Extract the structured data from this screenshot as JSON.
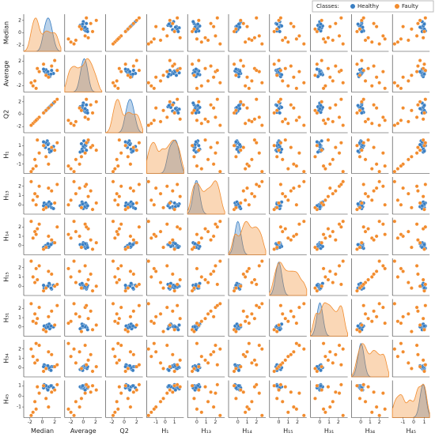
{
  "chart_data": {
    "type": "pairplot",
    "legend_title": "Classes:",
    "legend_position": "upper right",
    "series": [
      {
        "name": "Healthy",
        "color": "#3a7fc3"
      },
      {
        "name": "Faulty",
        "color": "#f28c2e"
      }
    ],
    "variables": [
      {
        "name": "Median",
        "lim": [
          -3,
          3
        ],
        "ticks": [
          -2,
          0,
          2
        ],
        "healthy": [
          0.5,
          1.0,
          1.5,
          0.8,
          1.2,
          0.3,
          1.8,
          0.6,
          1.1,
          0.9,
          1.4,
          0.2
        ],
        "faulty": [
          -1.5,
          -1.2,
          -0.5,
          0.2,
          1.0,
          2.0,
          -1.8,
          -0.8,
          0.6,
          1.5,
          -1.0,
          2.4
        ]
      },
      {
        "name": "Average",
        "lim": [
          -3,
          3
        ],
        "ticks": [
          -2,
          0,
          2
        ],
        "healthy": [
          0.2,
          -0.3,
          0.5,
          0.1,
          -0.5,
          0.4,
          0.0,
          0.6,
          -0.2,
          0.3,
          -0.1,
          0.7
        ],
        "faulty": [
          -2.0,
          -1.2,
          0.3,
          1.5,
          -0.6,
          2.1,
          -1.5,
          0.8,
          -0.3,
          1.2,
          -2.4,
          0.5
        ]
      },
      {
        "name": "Q2",
        "lim": [
          -3,
          3
        ],
        "ticks": [
          -2,
          0,
          2
        ],
        "healthy": [
          0.5,
          1.0,
          1.5,
          0.8,
          1.2,
          0.3,
          1.8,
          0.6,
          1.1,
          0.9,
          1.4,
          0.2
        ],
        "faulty": [
          -1.5,
          -1.2,
          -0.5,
          0.2,
          1.0,
          2.0,
          -1.8,
          -0.8,
          0.6,
          1.5,
          -1.0,
          2.4
        ]
      },
      {
        "name": "H₁",
        "lim": [
          -2,
          2
        ],
        "ticks": [
          -1,
          0,
          1
        ],
        "healthy": [
          0.8,
          1.2,
          0.5,
          1.5,
          0.3,
          1.0,
          0.9,
          1.3,
          0.6,
          1.1,
          0.4,
          1.4
        ],
        "faulty": [
          -1.5,
          -0.5,
          0.2,
          1.0,
          -1.0,
          0.5,
          -1.8,
          1.6,
          -0.2,
          0.8,
          -1.2,
          1.3
        ]
      },
      {
        "name": "H₁₃",
        "lim": [
          -1,
          3
        ],
        "ticks": [
          0,
          1,
          2
        ],
        "healthy": [
          -0.2,
          0.0,
          -0.3,
          0.1,
          -0.1,
          0.2,
          -0.4,
          0.0,
          0.3,
          -0.2,
          0.1,
          -0.1
        ],
        "faulty": [
          0.5,
          1.2,
          2.0,
          -0.5,
          1.8,
          0.2,
          2.5,
          0.9,
          -0.3,
          1.5,
          0.0,
          2.2
        ]
      },
      {
        "name": "H₁₄",
        "lim": [
          -1,
          3
        ],
        "ticks": [
          0,
          1,
          2
        ],
        "healthy": [
          0.0,
          -0.2,
          0.2,
          -0.1,
          0.1,
          -0.3,
          0.3,
          0.0,
          -0.1,
          0.2,
          0.1,
          -0.2
        ],
        "faulty": [
          0.8,
          1.5,
          2.3,
          -0.4,
          1.0,
          0.3,
          2.6,
          1.8,
          -0.2,
          0.6,
          1.2,
          2.0
        ]
      },
      {
        "name": "H₁₅",
        "lim": [
          -1,
          3
        ],
        "ticks": [
          0,
          1,
          2
        ],
        "healthy": [
          -0.1,
          0.1,
          -0.3,
          0.0,
          0.2,
          -0.2,
          0.1,
          -0.1,
          0.3,
          0.0,
          -0.2,
          0.1
        ],
        "faulty": [
          1.0,
          0.4,
          2.2,
          -0.5,
          1.6,
          0.0,
          2.7,
          0.7,
          -0.2,
          1.3,
          1.9,
          0.2
        ]
      },
      {
        "name": "H₃₁",
        "lim": [
          -1,
          3
        ],
        "ticks": [
          0,
          1,
          2
        ],
        "healthy": [
          0.1,
          -0.1,
          0.0,
          0.2,
          -0.2,
          0.1,
          0.0,
          -0.1,
          0.3,
          0.0,
          0.1,
          -0.3
        ],
        "faulty": [
          0.6,
          1.4,
          2.1,
          -0.3,
          1.1,
          0.2,
          2.5,
          0.9,
          -0.5,
          1.7,
          0.4,
          2.3
        ]
      },
      {
        "name": "H₃₄",
        "lim": [
          -1,
          3
        ],
        "ticks": [
          0,
          1,
          2
        ],
        "healthy": [
          0.2,
          -0.1,
          0.1,
          0.0,
          -0.2,
          0.3,
          0.1,
          -0.1,
          0.0,
          0.2,
          -0.3,
          0.1
        ],
        "faulty": [
          1.2,
          0.5,
          2.4,
          -0.4,
          1.7,
          0.1,
          2.0,
          0.8,
          -0.1,
          1.4,
          2.6,
          0.3
        ]
      },
      {
        "name": "H₄₅",
        "lim": [
          -2,
          1.5
        ],
        "ticks": [
          -1,
          0,
          1
        ],
        "healthy": [
          0.9,
          0.8,
          1.0,
          0.7,
          0.9,
          1.1,
          0.8,
          1.0,
          0.9,
          0.6,
          1.0,
          0.8
        ],
        "faulty": [
          -1.5,
          -0.5,
          0.3,
          1.0,
          -1.0,
          0.6,
          -1.8,
          0.9,
          -0.2,
          0.4,
          -1.2,
          1.1
        ]
      }
    ]
  }
}
